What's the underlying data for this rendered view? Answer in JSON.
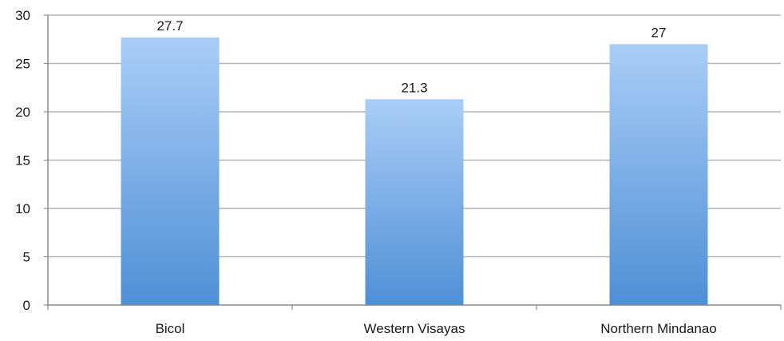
{
  "chart_data": {
    "type": "bar",
    "categories": [
      "Bicol",
      "Western Visayas",
      "Northern Mindanao"
    ],
    "values": [
      27.7,
      21.3,
      27
    ],
    "data_labels": [
      "27.7",
      "21.3",
      "27"
    ],
    "title": "",
    "xlabel": "",
    "ylabel": "",
    "ylim": [
      0,
      30
    ],
    "yticks": [
      "0",
      "5",
      "10",
      "15",
      "20",
      "25",
      "30"
    ],
    "grid": true,
    "legend": "none",
    "colors": {
      "bar_top": "#a9cdf7",
      "bar_bottom": "#4f8fd6",
      "gridline": "#b3b3b3",
      "axis": "#8c8c8c"
    }
  }
}
